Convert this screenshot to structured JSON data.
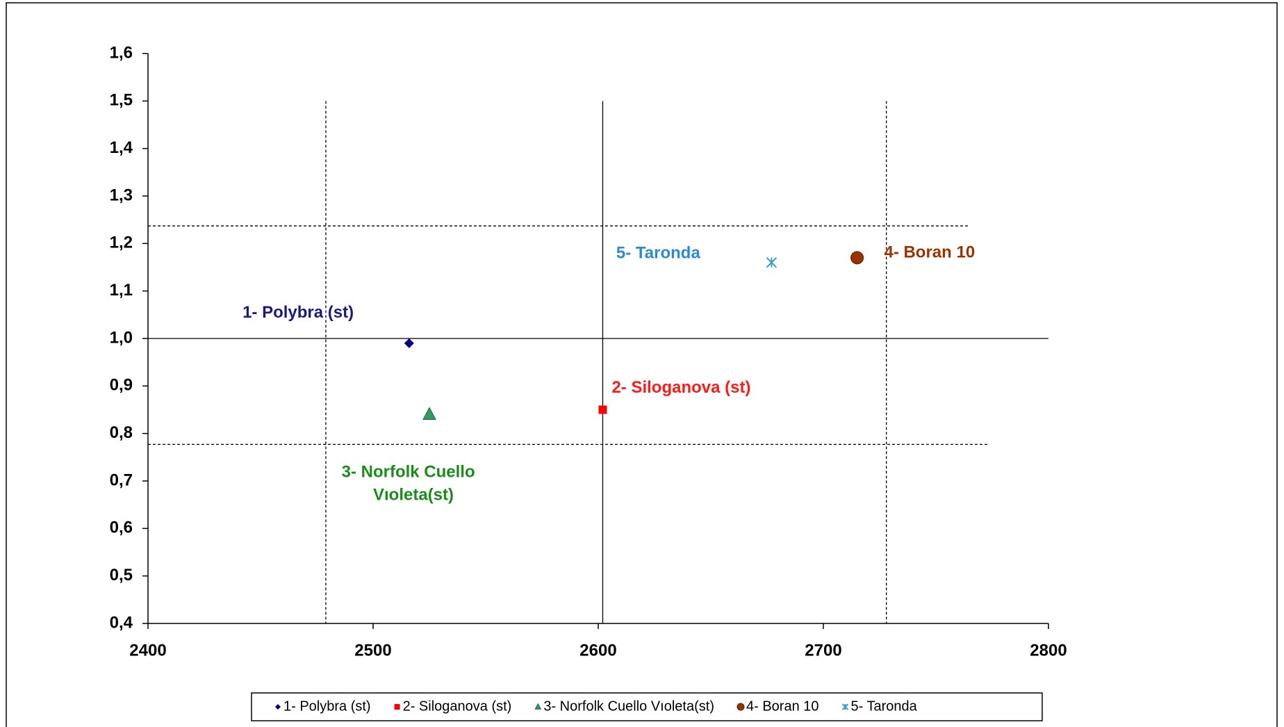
{
  "chart_data": {
    "type": "scatter",
    "xlim": [
      2400,
      2800
    ],
    "xticks": [
      2400,
      2500,
      2600,
      2700,
      2800
    ],
    "ylim": [
      0.4,
      1.6
    ],
    "yticks": [
      {
        "value": 0.4,
        "label": "0,4"
      },
      {
        "value": 0.5,
        "label": "0,5"
      },
      {
        "value": 0.6,
        "label": "0,6"
      },
      {
        "value": 0.7,
        "label": "0,7"
      },
      {
        "value": 0.8,
        "label": "0,8"
      },
      {
        "value": 0.9,
        "label": "0,9"
      },
      {
        "value": 1.0,
        "label": "1,0"
      },
      {
        "value": 1.1,
        "label": "1,1"
      },
      {
        "value": 1.2,
        "label": "1,2"
      },
      {
        "value": 1.3,
        "label": "1,3"
      },
      {
        "value": 1.4,
        "label": "1,4"
      },
      {
        "value": 1.5,
        "label": "1,5"
      },
      {
        "value": 1.6,
        "label": "1,6"
      }
    ],
    "grid": false,
    "legend": "bottom",
    "series": [
      {
        "name": "1- Polybra (st)",
        "color": "#000080",
        "marker": "diamond",
        "x": [
          2516
        ],
        "values": [
          0.99
        ]
      },
      {
        "name": "2- Siloganova (st)",
        "color": "#ff0000",
        "marker": "square",
        "x": [
          2602
        ],
        "values": [
          0.85
        ]
      },
      {
        "name": "3- Norfolk Cuello Vıoleta(st)",
        "color": "#339966",
        "marker": "triangle",
        "x": [
          2525
        ],
        "values": [
          0.84
        ]
      },
      {
        "name": "4- Boran 10",
        "color": "#993300",
        "marker": "circle",
        "x": [
          2715
        ],
        "values": [
          1.17
        ]
      },
      {
        "name": "5- Taronda",
        "color": "#33a0cc",
        "marker": "asterisk",
        "x": [
          2677
        ],
        "values": [
          1.16
        ]
      }
    ],
    "vlines": [
      {
        "value": 2479,
        "from": 0.4,
        "to": 1.5,
        "style": "dashed"
      },
      {
        "value": 2602,
        "from": 0.4,
        "to": 1.5,
        "style": "solid"
      },
      {
        "value": 2728,
        "from": 0.4,
        "to": 1.5,
        "style": "dashed"
      }
    ],
    "hlines": [
      {
        "value": 1.237,
        "from": 2400,
        "to": 2765,
        "style": "dashed"
      },
      {
        "value": 1.0,
        "from": 2400,
        "to": 2800,
        "style": "solid"
      },
      {
        "value": 0.777,
        "from": 2400,
        "to": 2773,
        "style": "dashed"
      }
    ],
    "annotations": [
      {
        "text": "1- Polybra (st)",
        "x": 2442,
        "y": 1.053,
        "color": "#1a1a80"
      },
      {
        "text": "2- Siloganova (st)",
        "x": 2606,
        "y": 0.895,
        "color": "#ff1a1a"
      },
      {
        "text": "3- Norfolk Cuello",
        "x": 2486,
        "y": 0.717,
        "color": "#1a8c1a"
      },
      {
        "text": "Vıoleta(st)",
        "x": 2500,
        "y": 0.669,
        "color": "#1a8c1a"
      },
      {
        "text": "4- Boran 10",
        "x": 2727,
        "y": 1.18,
        "color": "#993300"
      },
      {
        "text": "5- Taronda",
        "x": 2608,
        "y": 1.178,
        "color": "#2a8ad4"
      }
    ]
  }
}
